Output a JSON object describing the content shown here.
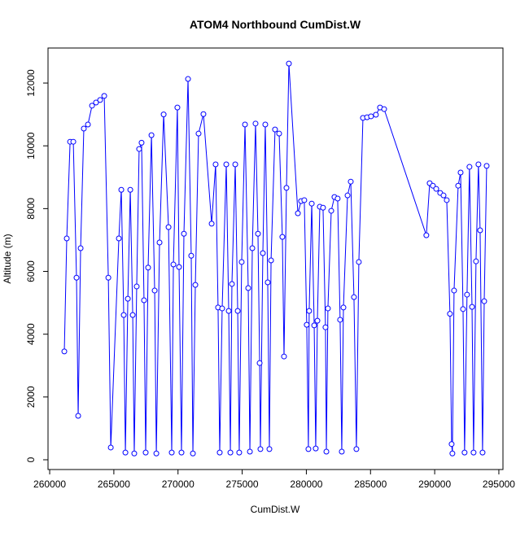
{
  "chart_data": {
    "type": "line",
    "title": "ATOM4 Northbound CumDist.W",
    "xlabel": "CumDist.W",
    "ylabel": "Altitude (m)",
    "x": [
      261140,
      261330,
      261590,
      261840,
      262090,
      262220,
      262410,
      262660,
      262980,
      263300,
      263610,
      263930,
      264250,
      264570,
      264760,
      265390,
      265580,
      265770,
      265900,
      266090,
      266280,
      266470,
      266590,
      266780,
      266970,
      267160,
      267350,
      267480,
      267670,
      267930,
      268180,
      268310,
      268560,
      268880,
      269260,
      269510,
      269640,
      269950,
      270080,
      270270,
      270460,
      270780,
      271030,
      271160,
      271350,
      271600,
      271980,
      272620,
      272930,
      273120,
      273250,
      273440,
      273760,
      273950,
      274080,
      274200,
      274460,
      274650,
      274770,
      274960,
      275220,
      275470,
      275600,
      275790,
      276040,
      276230,
      276360,
      276420,
      276610,
      276800,
      276990,
      277120,
      277250,
      277560,
      277880,
      278130,
      278260,
      278450,
      278640,
      279340,
      279590,
      279840,
      280030,
      280160,
      280220,
      280420,
      280610,
      280730,
      280860,
      281050,
      281300,
      281490,
      281560,
      281680,
      281940,
      282190,
      282440,
      282630,
      282760,
      282890,
      283210,
      283460,
      283710,
      283900,
      284090,
      284410,
      284730,
      285040,
      285420,
      285740,
      286060,
      289350,
      289610,
      289860,
      290120,
      290430,
      290690,
      290940,
      291190,
      291320,
      291380,
      291510,
      291830,
      292020,
      292210,
      292330,
      292520,
      292710,
      292910,
      293030,
      293220,
      293410,
      293540,
      293730,
      293860,
      294050
    ],
    "series": [
      {
        "name": "Altitude",
        "color": "#0000ff",
        "values": [
          3450,
          7050,
          10130,
          10130,
          5800,
          1400,
          6740,
          10550,
          10680,
          11280,
          11380,
          11460,
          11590,
          5800,
          390,
          7050,
          8600,
          4610,
          230,
          5130,
          8600,
          4610,
          200,
          5520,
          9900,
          10100,
          5080,
          230,
          6120,
          10340,
          5390,
          200,
          6920,
          11000,
          7410,
          230,
          6220,
          11220,
          6140,
          230,
          7200,
          12130,
          6500,
          200,
          5570,
          10390,
          11010,
          7520,
          9410,
          4850,
          230,
          4820,
          9410,
          4740,
          230,
          5600,
          9410,
          4740,
          230,
          6300,
          10680,
          5470,
          260,
          6740,
          10710,
          7200,
          3080,
          340,
          6580,
          10680,
          5650,
          340,
          6350,
          10520,
          10390,
          7100,
          3290,
          8660,
          12620,
          7850,
          8240,
          8270,
          4300,
          340,
          4740,
          8160,
          4280,
          360,
          4430,
          8060,
          8030,
          4220,
          260,
          4820,
          7930,
          8370,
          8320,
          4460,
          260,
          4850,
          8420,
          8860,
          5180,
          340,
          6300,
          10890,
          10910,
          10940,
          10990,
          11220,
          11170,
          7150,
          8810,
          8730,
          8630,
          8500,
          8420,
          8270,
          4650,
          500,
          200,
          5390,
          8730,
          9150,
          4800,
          230,
          5260,
          9330,
          4870,
          230,
          6320,
          9410,
          7310,
          230,
          5050,
          9360
        ]
      }
    ],
    "xlim": [
      259870,
      295320
    ],
    "ylim": [
      -311,
      13116
    ],
    "xticks": [
      260000,
      265000,
      270000,
      275000,
      280000,
      285000,
      290000,
      295000
    ],
    "yticks": [
      0,
      2000,
      4000,
      6000,
      8000,
      10000,
      12000
    ]
  }
}
